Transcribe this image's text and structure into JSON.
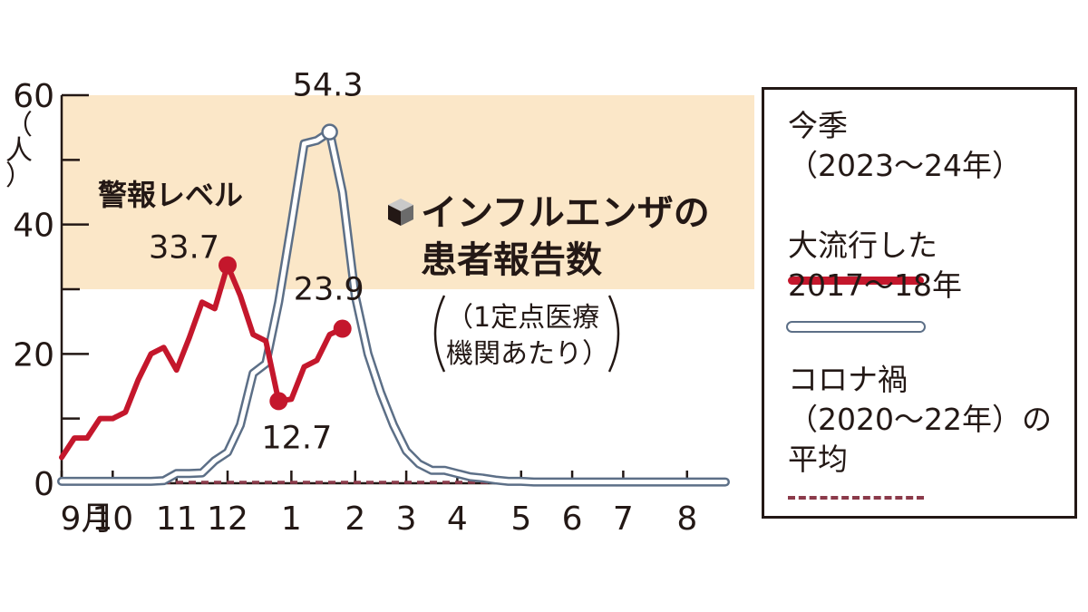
{
  "chart_data": {
    "type": "line",
    "title": "インフルエンザの\n患者報告数",
    "subtitle": "（1定点医療\n機関あたり）",
    "ylabel": "（人）",
    "ylim": [
      0,
      60
    ],
    "yticks": [
      0,
      20,
      40,
      60
    ],
    "xlim": [
      0,
      52
    ],
    "x_month_labels": [
      {
        "label": "9月",
        "week": 0
      },
      {
        "label": "10",
        "week": 4
      },
      {
        "label": "11",
        "week": 9
      },
      {
        "label": "12",
        "week": 13
      },
      {
        "label": "1",
        "week": 18
      },
      {
        "label": "2",
        "week": 23
      },
      {
        "label": "3",
        "week": 27
      },
      {
        "label": "4",
        "week": 31
      },
      {
        "label": "5",
        "week": 36
      },
      {
        "label": "6",
        "week": 40
      },
      {
        "label": "7",
        "week": 44
      },
      {
        "label": "8",
        "week": 49
      }
    ],
    "alert_band": {
      "label": "警報レベル",
      "from": 30,
      "to": 60
    },
    "series": [
      {
        "name": "今季\n（2023～24年）",
        "color": "#c4172c",
        "x": [
          0,
          1,
          2,
          3,
          4,
          5,
          6,
          7,
          8,
          9,
          10,
          11,
          12,
          13,
          14,
          15,
          16,
          17,
          18,
          19,
          20,
          21,
          22
        ],
        "y": [
          4,
          7,
          7,
          10,
          10,
          11,
          16,
          20,
          21,
          17.5,
          22.5,
          28,
          27,
          33.7,
          29,
          23,
          22,
          12.7,
          13,
          18,
          19,
          23,
          23.9
        ],
        "labels": [
          {
            "index": 13,
            "text": "33.7"
          },
          {
            "index": 17,
            "text": "12.7"
          },
          {
            "index": 22,
            "text": "23.9"
          }
        ]
      },
      {
        "name": "大流行した\n2017～18年",
        "color": "#5c6f87",
        "x": [
          0,
          1,
          2,
          3,
          4,
          5,
          6,
          7,
          8,
          9,
          10,
          11,
          12,
          13,
          14,
          15,
          16,
          17,
          18,
          19,
          20,
          21,
          22,
          23,
          24,
          25,
          26,
          27,
          28,
          29,
          30,
          31,
          32,
          33,
          34,
          35,
          36,
          37,
          38,
          39,
          40,
          41,
          42,
          43,
          44,
          45,
          46,
          47,
          48,
          49,
          50,
          51,
          52
        ],
        "y": [
          0.3,
          0.3,
          0.3,
          0.3,
          0.3,
          0.3,
          0.3,
          0.3,
          0.4,
          1.5,
          1.5,
          1.6,
          3.5,
          4.8,
          9,
          17,
          18.5,
          28,
          40,
          52.5,
          53,
          54.3,
          45,
          29,
          20,
          14,
          9,
          5,
          3,
          2,
          2,
          1.5,
          1,
          0.8,
          0.5,
          0.3,
          0.3,
          0.2,
          0.2,
          0.2,
          0.2,
          0.2,
          0.2,
          0.2,
          0.2,
          0.2,
          0.2,
          0.2,
          0.2,
          0.2,
          0.2,
          0.2,
          0.2
        ],
        "labels": [
          {
            "index": 21,
            "text": "54.3"
          }
        ]
      },
      {
        "name": "コロナ禍\n（2020～22年）の\n平均",
        "color": "#8b3a4a",
        "dashed": true,
        "x": [
          0,
          52
        ],
        "y": [
          0,
          0
        ]
      }
    ],
    "legend": {
      "placement": "right"
    }
  }
}
